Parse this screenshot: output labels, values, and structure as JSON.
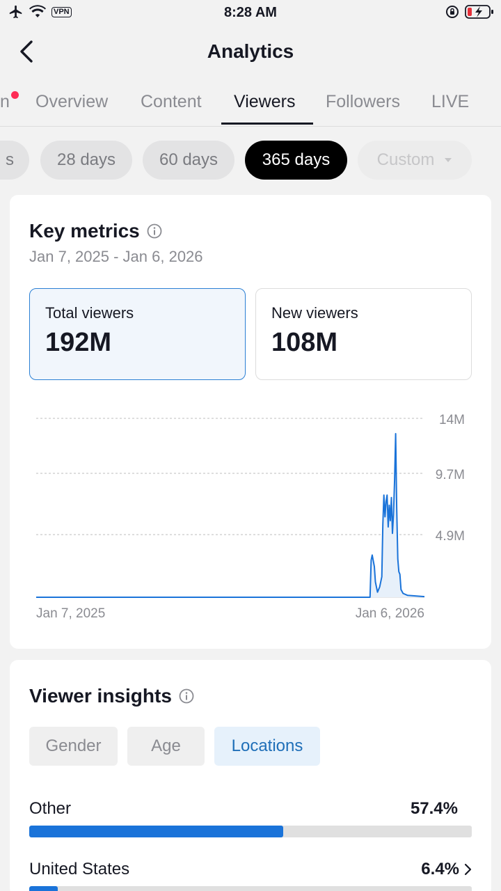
{
  "status_bar": {
    "time": "8:28 AM",
    "vpn_label": "VPN"
  },
  "header": {
    "title": "Analytics"
  },
  "tabs": [
    {
      "label": "n",
      "active": false,
      "has_dot": true
    },
    {
      "label": "Overview",
      "active": false
    },
    {
      "label": "Content",
      "active": false
    },
    {
      "label": "Viewers",
      "active": true
    },
    {
      "label": "Followers",
      "active": false
    },
    {
      "label": "LIVE",
      "active": false
    }
  ],
  "ranges": [
    {
      "label": "s"
    },
    {
      "label": "28 days"
    },
    {
      "label": "60 days"
    },
    {
      "label": "365 days",
      "active": true
    },
    {
      "label": "Custom",
      "disabled": true
    }
  ],
  "key_metrics": {
    "title": "Key metrics",
    "date_range": "Jan 7, 2025 - Jan 6, 2026",
    "cards": [
      {
        "label": "Total viewers",
        "value": "192M",
        "selected": true
      },
      {
        "label": "New viewers",
        "value": "108M",
        "selected": false
      }
    ]
  },
  "chart_data": {
    "type": "line",
    "series_color": "#1a73d9",
    "y_ticks": [
      "14M",
      "9.7M",
      "4.9M"
    ],
    "ylim": [
      0,
      14.6
    ],
    "x_labels": [
      "Jan 7, 2025",
      "Jan 6, 2026"
    ],
    "grid": true,
    "points": [
      [
        "2025-01-07",
        0
      ],
      [
        "2025-11-16",
        0
      ],
      [
        "2025-11-17",
        2.9
      ],
      [
        "2025-11-18",
        3.3
      ],
      [
        "2025-11-20",
        2.4
      ],
      [
        "2025-11-21",
        1.2
      ],
      [
        "2025-11-23",
        0.4
      ],
      [
        "2025-11-25",
        0.8
      ],
      [
        "2025-11-27",
        1.6
      ],
      [
        "2025-11-28",
        5.7
      ],
      [
        "2025-11-29",
        8.0
      ],
      [
        "2025-11-30",
        6.3
      ],
      [
        "2025-12-01",
        7.5
      ],
      [
        "2025-12-02",
        8.0
      ],
      [
        "2025-12-03",
        5.5
      ],
      [
        "2025-12-04",
        7.2
      ],
      [
        "2025-12-05",
        6.0
      ],
      [
        "2025-12-06",
        7.8
      ],
      [
        "2025-12-07",
        5.0
      ],
      [
        "2025-12-08",
        6.5
      ],
      [
        "2025-12-09",
        9.2
      ],
      [
        "2025-12-10",
        12.8
      ],
      [
        "2025-12-11",
        7.0
      ],
      [
        "2025-12-12",
        3.0
      ],
      [
        "2025-12-13",
        2.0
      ],
      [
        "2025-12-14",
        1.8
      ],
      [
        "2025-12-15",
        0.6
      ],
      [
        "2025-12-17",
        0.3
      ],
      [
        "2025-12-21",
        0.15
      ],
      [
        "2026-01-06",
        0.05
      ]
    ]
  },
  "insights": {
    "title": "Viewer insights",
    "segments": [
      {
        "label": "Gender",
        "active": false
      },
      {
        "label": "Age",
        "active": false
      },
      {
        "label": "Locations",
        "active": true
      }
    ],
    "locations": [
      {
        "name": "Other",
        "pct_label": "57.4%",
        "share": 0.574,
        "chevron": false
      },
      {
        "name": "United States",
        "pct_label": "6.4%",
        "share": 0.064,
        "chevron": true
      }
    ]
  }
}
